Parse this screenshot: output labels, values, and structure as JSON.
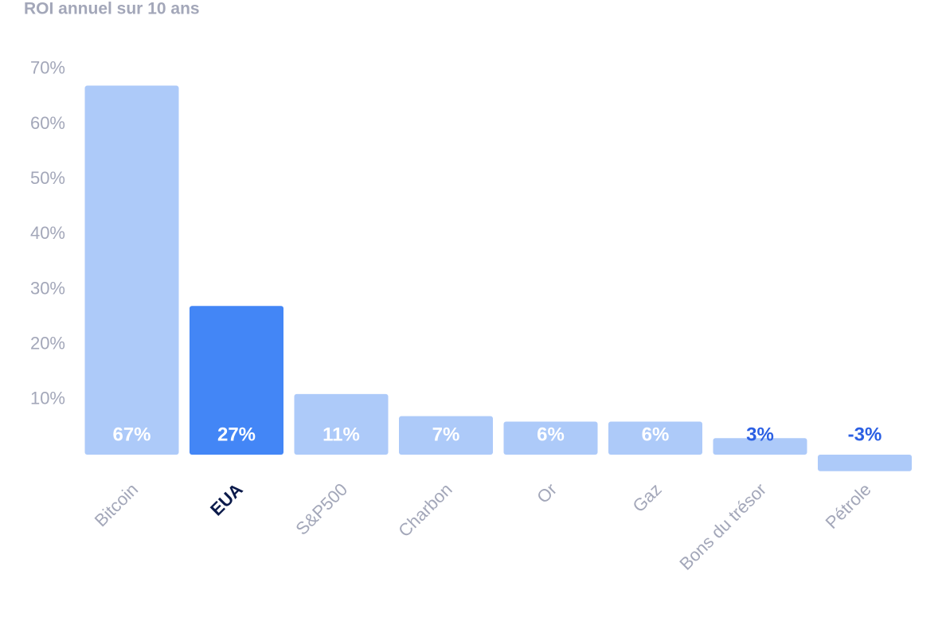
{
  "chart_data": {
    "type": "bar",
    "title": "ROI annuel sur 10 ans",
    "categories": [
      "Bitcoin",
      "EUA",
      "S&P500",
      "Charbon",
      "Or",
      "Gaz",
      "Bons du trésor",
      "Pétrole"
    ],
    "values": [
      67,
      27,
      11,
      7,
      6,
      6,
      3,
      -3
    ],
    "value_labels": [
      "67%",
      "27%",
      "11%",
      "7%",
      "6%",
      "6%",
      "3%",
      "-3%"
    ],
    "colors": [
      "#adcaf9",
      "#4386f6",
      "#adcaf9",
      "#adcaf9",
      "#adcaf9",
      "#adcaf9",
      "#adcaf9",
      "#adcaf9"
    ],
    "highlight": 1,
    "ylim": [
      -10,
      75
    ],
    "yticks": [
      {
        "value": 10,
        "label": "10%"
      },
      {
        "value": 20,
        "label": "20%"
      },
      {
        "value": 30,
        "label": "30%"
      },
      {
        "value": 40,
        "label": "40%"
      },
      {
        "value": 50,
        "label": "50%"
      },
      {
        "value": 60,
        "label": "60%"
      },
      {
        "value": 70,
        "label": "70%"
      }
    ],
    "grid": false
  }
}
